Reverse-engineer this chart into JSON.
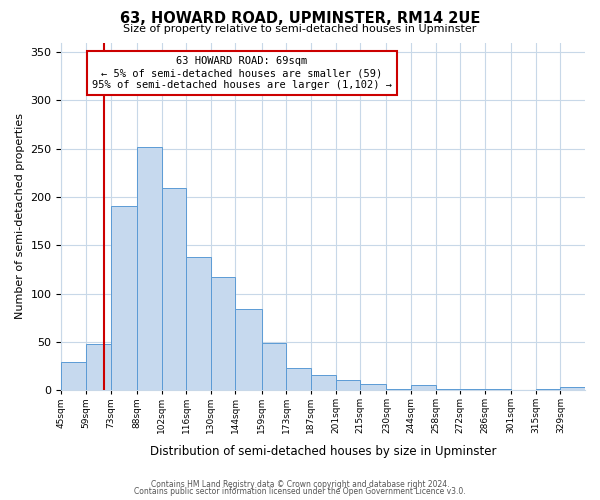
{
  "title": "63, HOWARD ROAD, UPMINSTER, RM14 2UE",
  "subtitle": "Size of property relative to semi-detached houses in Upminster",
  "xlabel": "Distribution of semi-detached houses by size in Upminster",
  "ylabel": "Number of semi-detached properties",
  "bar_values": [
    29,
    48,
    191,
    252,
    209,
    138,
    117,
    84,
    49,
    23,
    16,
    10,
    6,
    1,
    5,
    1,
    1,
    1,
    0,
    1,
    3
  ],
  "bin_labels": [
    "45sqm",
    "59sqm",
    "73sqm",
    "88sqm",
    "102sqm",
    "116sqm",
    "130sqm",
    "144sqm",
    "159sqm",
    "173sqm",
    "187sqm",
    "201sqm",
    "215sqm",
    "230sqm",
    "244sqm",
    "258sqm",
    "272sqm",
    "286sqm",
    "301sqm",
    "315sqm",
    "329sqm"
  ],
  "bin_edges": [
    45,
    59,
    73,
    88,
    102,
    116,
    130,
    144,
    159,
    173,
    187,
    201,
    215,
    230,
    244,
    258,
    272,
    286,
    301,
    315,
    329,
    343
  ],
  "bar_color": "#c6d9ee",
  "bar_edge_color": "#5b9bd5",
  "property_line_x": 69,
  "property_line_color": "#cc0000",
  "annotation_title": "63 HOWARD ROAD: 69sqm",
  "annotation_line1": "← 5% of semi-detached houses are smaller (59)",
  "annotation_line2": "95% of semi-detached houses are larger (1,102) →",
  "annotation_box_color": "#cc0000",
  "ylim": [
    0,
    360
  ],
  "yticks": [
    0,
    50,
    100,
    150,
    200,
    250,
    300,
    350
  ],
  "footer_line1": "Contains HM Land Registry data © Crown copyright and database right 2024.",
  "footer_line2": "Contains public sector information licensed under the Open Government Licence v3.0.",
  "bg_color": "#ffffff",
  "grid_color": "#c8d8e8"
}
